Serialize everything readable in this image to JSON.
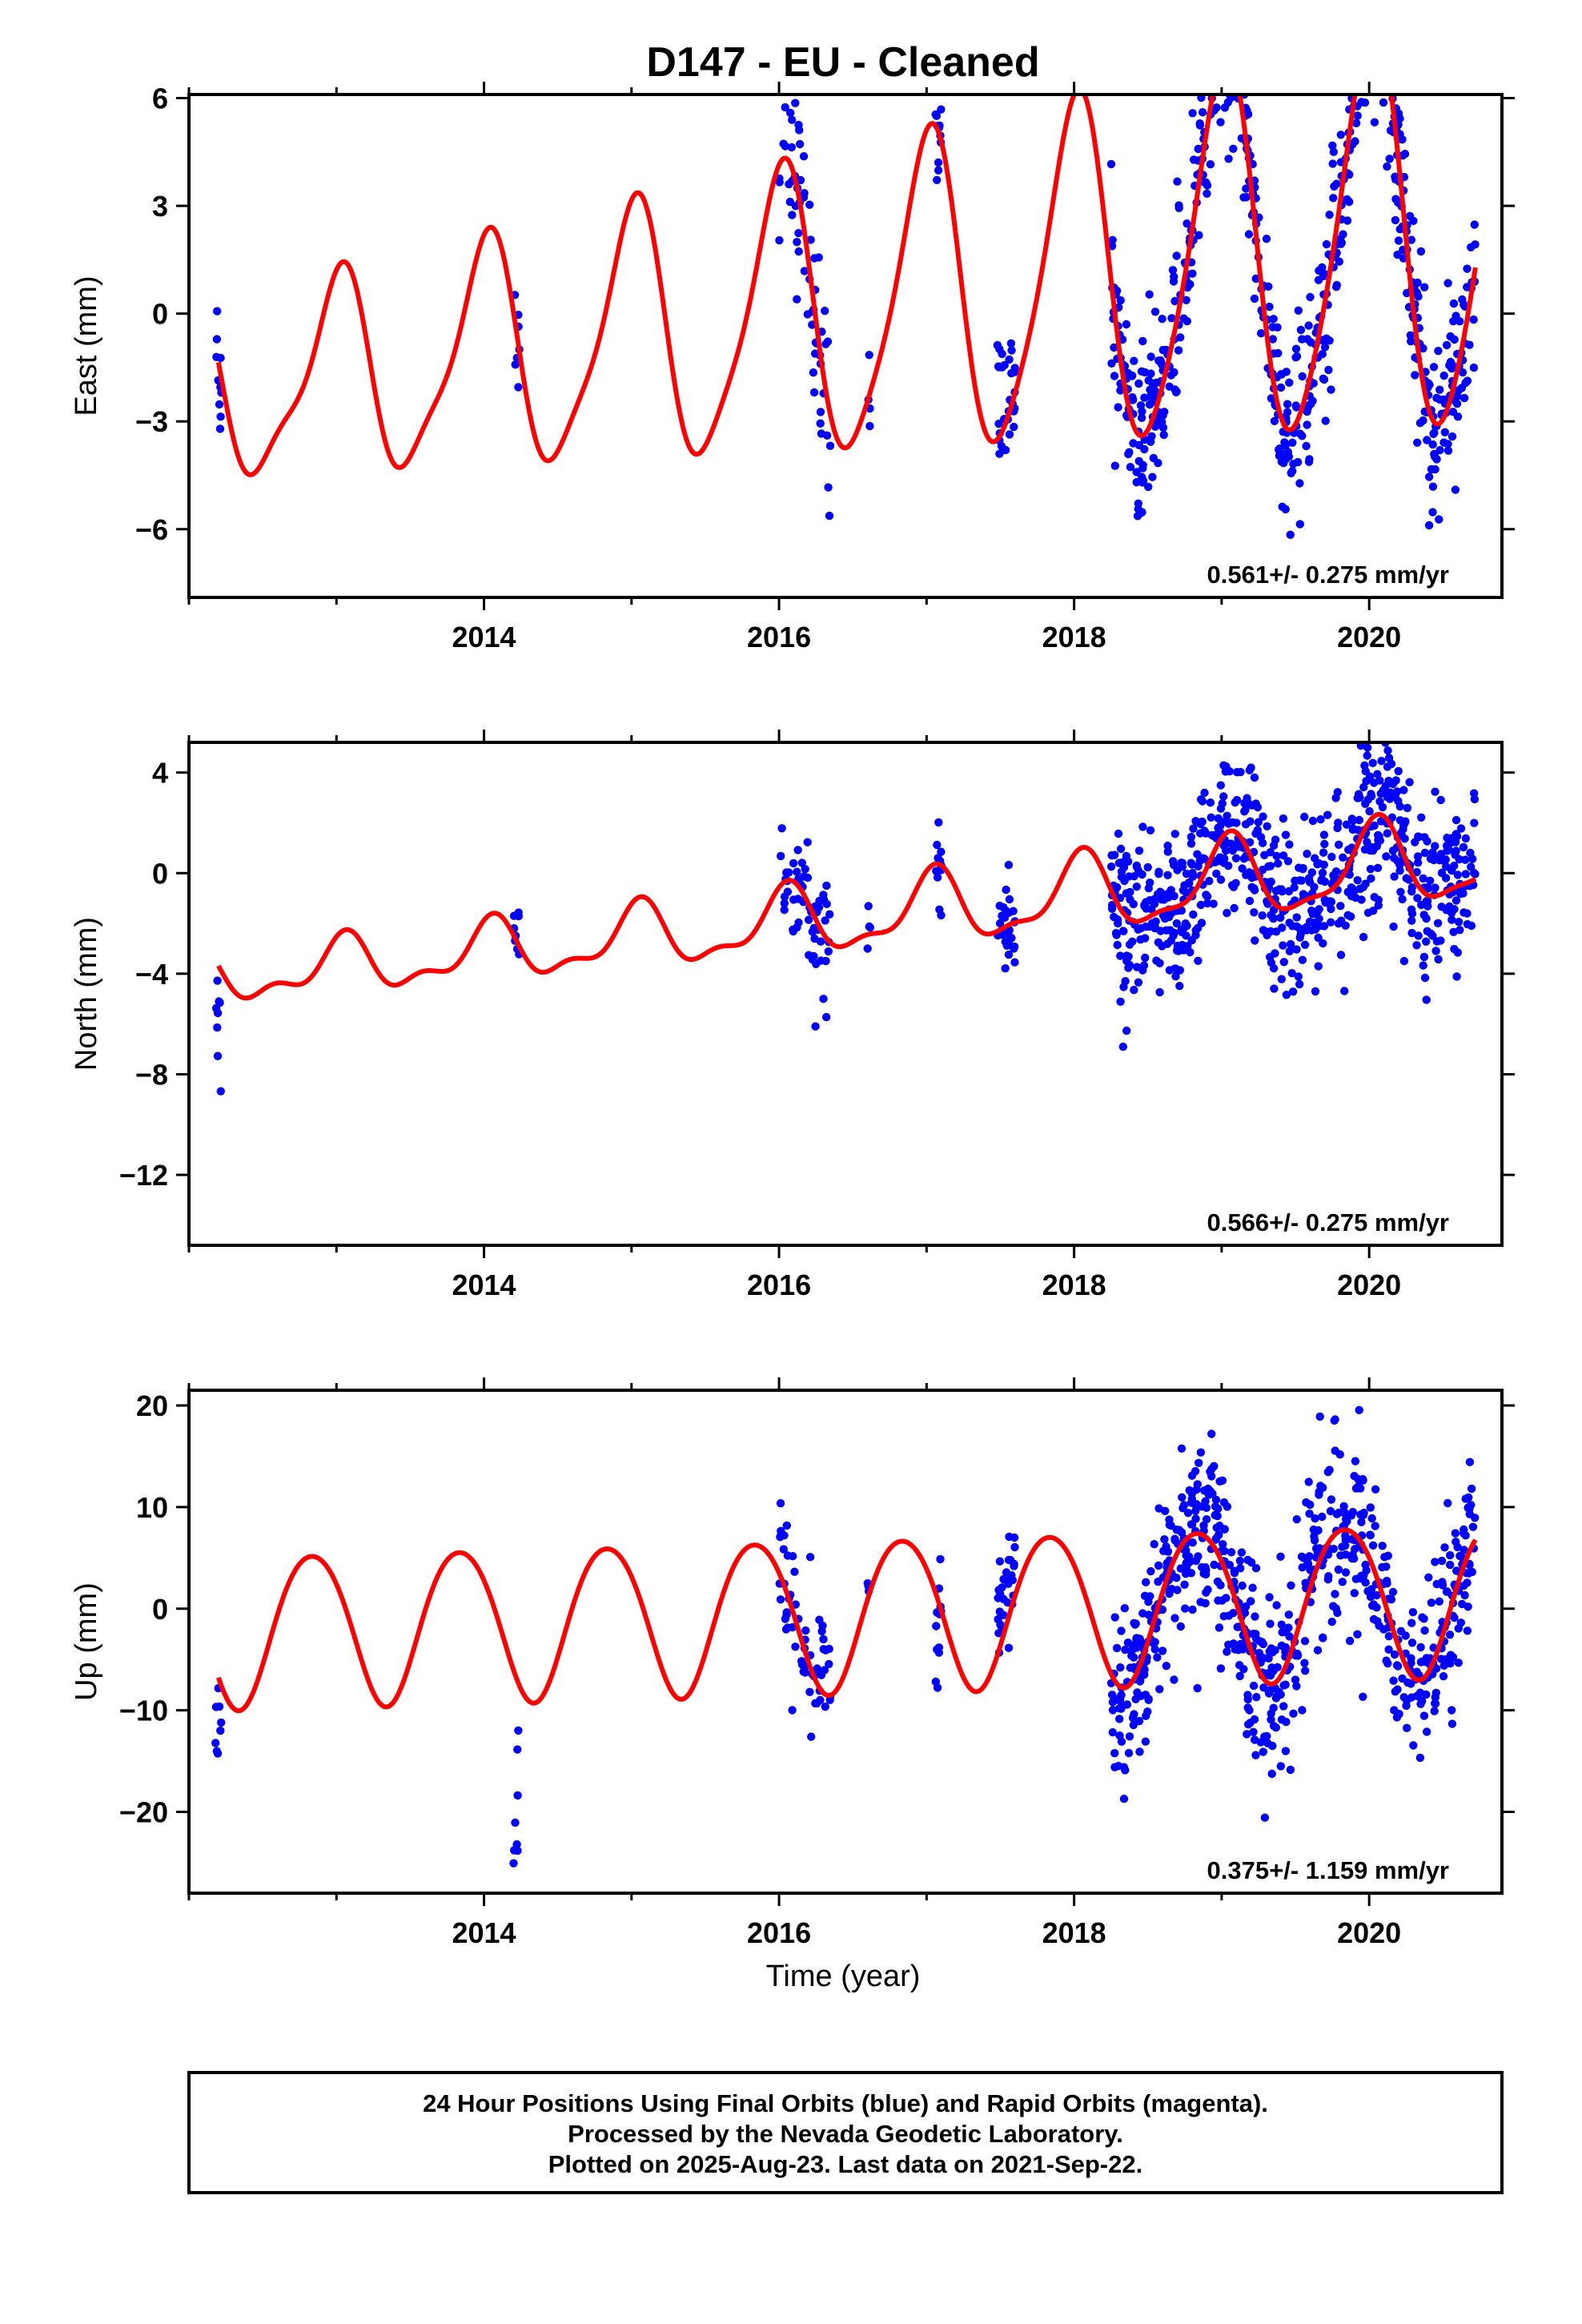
{
  "title": "D147  - EU - Cleaned",
  "xlabel": "Time (year)",
  "footer": [
    "24 Hour Positions Using Final Orbits (blue) and Rapid Orbits (magenta).",
    "Processed by the Nevada Geodetic Laboratory.",
    "Plotted on 2025-Aug-23. Last data on 2021-Sep-22."
  ],
  "colors": {
    "points": "#0000ff",
    "model": "#ff0000",
    "frame": "#000000"
  },
  "chart_data": [
    {
      "type": "scatter",
      "ylabel": "East (mm)",
      "xlim": [
        2012.0,
        2020.9
      ],
      "ylim": [
        -7.9,
        6.1
      ],
      "xticks": [
        2014,
        2016,
        2018,
        2020
      ],
      "yticks": [
        6,
        3,
        0,
        -3,
        -6
      ],
      "ytick_labels": [
        "6",
        "3",
        "0",
        "−3",
        "−6"
      ],
      "rate_label": "0.561+/- 0.275 mm/yr",
      "model": {
        "name": "",
        "t0": 2012.2,
        "y0": -2.2,
        "trend": 0.561,
        "amp1": 2.3,
        "phase1": 1.55,
        "amp2": 0.7,
        "phase2": 0.5,
        "amp_growth": 0.18
      },
      "series": [
        {
          "name": "",
          "clusters": [
            {
              "t0": 2012.18,
              "t1": 2012.22,
              "n": 10,
              "spread": 1.0,
              "offset": 0
            },
            {
              "t0": 2014.2,
              "t1": 2014.24,
              "n": 7,
              "spread": 0.8,
              "offset": 0
            },
            {
              "t0": 2016.0,
              "t1": 2016.35,
              "n": 60,
              "spread": 1.3,
              "offset": 0
            },
            {
              "t0": 2016.6,
              "t1": 2016.62,
              "n": 4,
              "spread": 0.6,
              "offset": 0
            },
            {
              "t0": 2017.06,
              "t1": 2017.1,
              "n": 12,
              "spread": 1.0,
              "offset": 0
            },
            {
              "t0": 2017.48,
              "t1": 2017.6,
              "n": 30,
              "spread": 1.0,
              "offset": 0.5
            },
            {
              "t0": 2018.25,
              "t1": 2020.72,
              "n": 700,
              "spread": 1.2,
              "offset": 0
            }
          ]
        }
      ]
    },
    {
      "type": "scatter",
      "ylabel": "North (mm)",
      "xlim": [
        2012.0,
        2020.9
      ],
      "ylim": [
        -14.8,
        5.2
      ],
      "xticks": [
        2014,
        2016,
        2018,
        2020
      ],
      "yticks": [
        4,
        0,
        -4,
        -8,
        -12
      ],
      "ytick_labels": [
        "4",
        "0",
        "−4",
        "−8",
        "−12"
      ],
      "rate_label": "0.566+/- 0.275 mm/yr",
      "model": {
        "name": "",
        "t0": 2012.2,
        "y0": -4.2,
        "trend": 0.566,
        "amp1": 0.9,
        "phase1": 1.3,
        "amp2": 0.5,
        "phase2": 0.6,
        "amp_growth": 0.1
      },
      "series": [
        {
          "name": "",
          "clusters": [
            {
              "t0": 2012.18,
              "t1": 2012.22,
              "n": 8,
              "spread": 1.5,
              "offset": -2.2
            },
            {
              "t0": 2014.2,
              "t1": 2014.24,
              "n": 8,
              "spread": 0.9,
              "offset": 0.8
            },
            {
              "t0": 2016.0,
              "t1": 2016.35,
              "n": 60,
              "spread": 1.5,
              "offset": 0
            },
            {
              "t0": 2016.6,
              "t1": 2016.62,
              "n": 4,
              "spread": 0.6,
              "offset": 0
            },
            {
              "t0": 2017.06,
              "t1": 2017.1,
              "n": 12,
              "spread": 1.0,
              "offset": 0
            },
            {
              "t0": 2017.48,
              "t1": 2017.6,
              "n": 30,
              "spread": 1.0,
              "offset": 0
            },
            {
              "t0": 2018.25,
              "t1": 2020.72,
              "n": 700,
              "spread": 1.6,
              "offset": 0
            }
          ]
        }
      ]
    },
    {
      "type": "scatter",
      "ylabel": "Up (mm)",
      "xlim": [
        2012.0,
        2020.9
      ],
      "ylim": [
        -28,
        21.5
      ],
      "xticks": [
        2014,
        2016,
        2018,
        2020
      ],
      "yticks": [
        20,
        10,
        0,
        -10,
        -20
      ],
      "ytick_labels": [
        "20",
        "10",
        "0",
        "−10",
        "−20"
      ],
      "rate_label": "0.375+/- 1.159 mm/yr",
      "model": {
        "name": "",
        "t0": 2012.2,
        "y0": -2.0,
        "trend": 0.375,
        "amp1": 7.5,
        "phase1": 2.6,
        "amp2": 0.6,
        "phase2": 0.4,
        "amp_growth": 0.0
      },
      "series": [
        {
          "name": "",
          "clusters": [
            {
              "t0": 2012.18,
              "t1": 2012.22,
              "n": 8,
              "spread": 3.5,
              "offset": -3
            },
            {
              "t0": 2014.2,
              "t1": 2014.24,
              "n": 8,
              "spread": 4.5,
              "offset": -12
            },
            {
              "t0": 2016.0,
              "t1": 2016.35,
              "n": 60,
              "spread": 4.0,
              "offset": 0
            },
            {
              "t0": 2016.6,
              "t1": 2016.62,
              "n": 4,
              "spread": 1.5,
              "offset": 0
            },
            {
              "t0": 2017.06,
              "t1": 2017.1,
              "n": 12,
              "spread": 4.0,
              "offset": -4
            },
            {
              "t0": 2017.48,
              "t1": 2017.6,
              "n": 30,
              "spread": 3.0,
              "offset": 3
            },
            {
              "t0": 2018.25,
              "t1": 2020.72,
              "n": 700,
              "spread": 4.5,
              "offset": 0
            }
          ]
        }
      ]
    }
  ]
}
